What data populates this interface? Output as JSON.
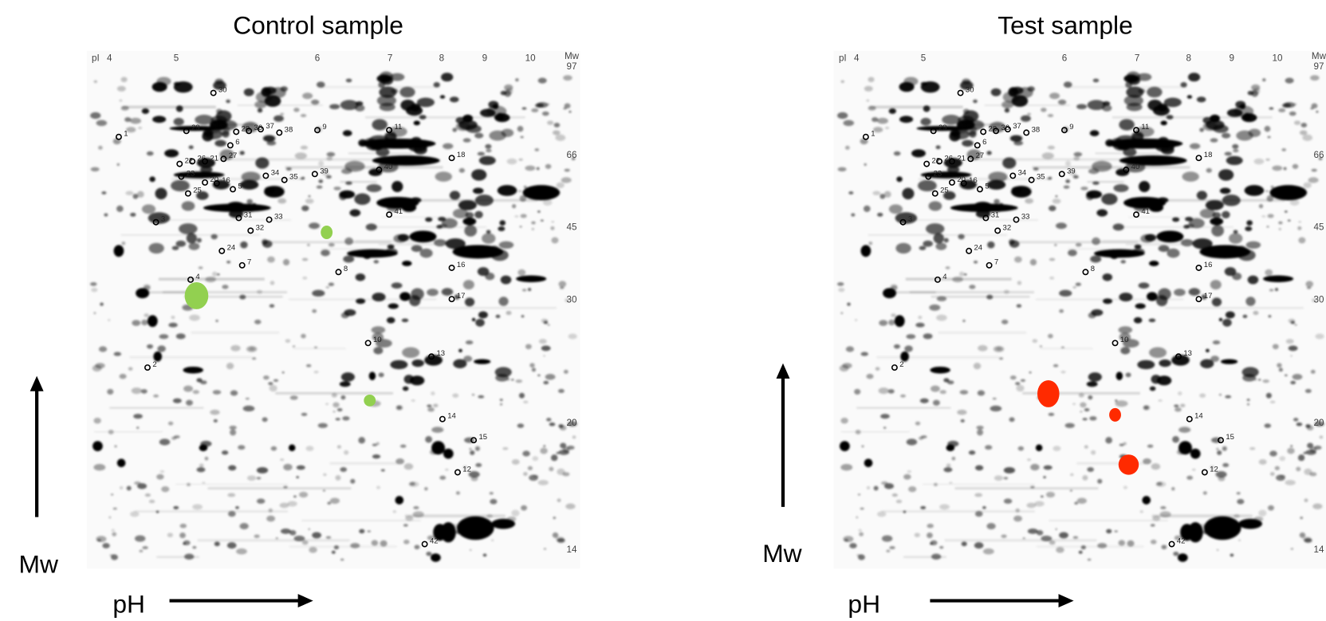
{
  "panels": [
    {
      "title": "Control sample",
      "y_axis_label": "Mw",
      "x_axis_label": "pH",
      "pi_header": "pI",
      "pi_labels": [
        "4",
        "5",
        "6",
        "7",
        "8",
        "9",
        "10"
      ],
      "mw_header": "Mw",
      "mw_labels": [
        "97",
        "66",
        "45",
        "30",
        "20",
        "14"
      ],
      "spot_labels": [
        "30",
        "29",
        "28",
        "36",
        "37",
        "38",
        "1",
        "6",
        "11",
        "9",
        "27",
        "22",
        "26",
        "21",
        "18",
        "39",
        "40",
        "34",
        "35",
        "23",
        "20",
        "16",
        "5",
        "25",
        "3",
        "31",
        "33",
        "32",
        "41",
        "24",
        "7",
        "8",
        "16",
        "4",
        "17",
        "10",
        "13",
        "2",
        "14",
        "15",
        "12",
        "42"
      ]
    },
    {
      "title": "Test sample",
      "y_axis_label": "Mw",
      "x_axis_label": "pH",
      "pi_header": "pI",
      "pi_labels": [
        "4",
        "5",
        "6",
        "7",
        "8",
        "9",
        "10"
      ],
      "mw_header": "Mw",
      "mw_labels": [
        "97",
        "66",
        "45",
        "30",
        "20",
        "14"
      ],
      "spot_labels": [
        "30",
        "29",
        "28",
        "36",
        "37",
        "38",
        "1",
        "6",
        "11",
        "9",
        "27",
        "22",
        "26",
        "21",
        "18",
        "39",
        "40",
        "34",
        "35",
        "23",
        "20",
        "16",
        "5",
        "25",
        "3",
        "31",
        "33",
        "32",
        "41",
        "24",
        "7",
        "8",
        "16",
        "4",
        "17",
        "10",
        "13",
        "2",
        "14",
        "15",
        "12",
        "42"
      ]
    }
  ]
}
